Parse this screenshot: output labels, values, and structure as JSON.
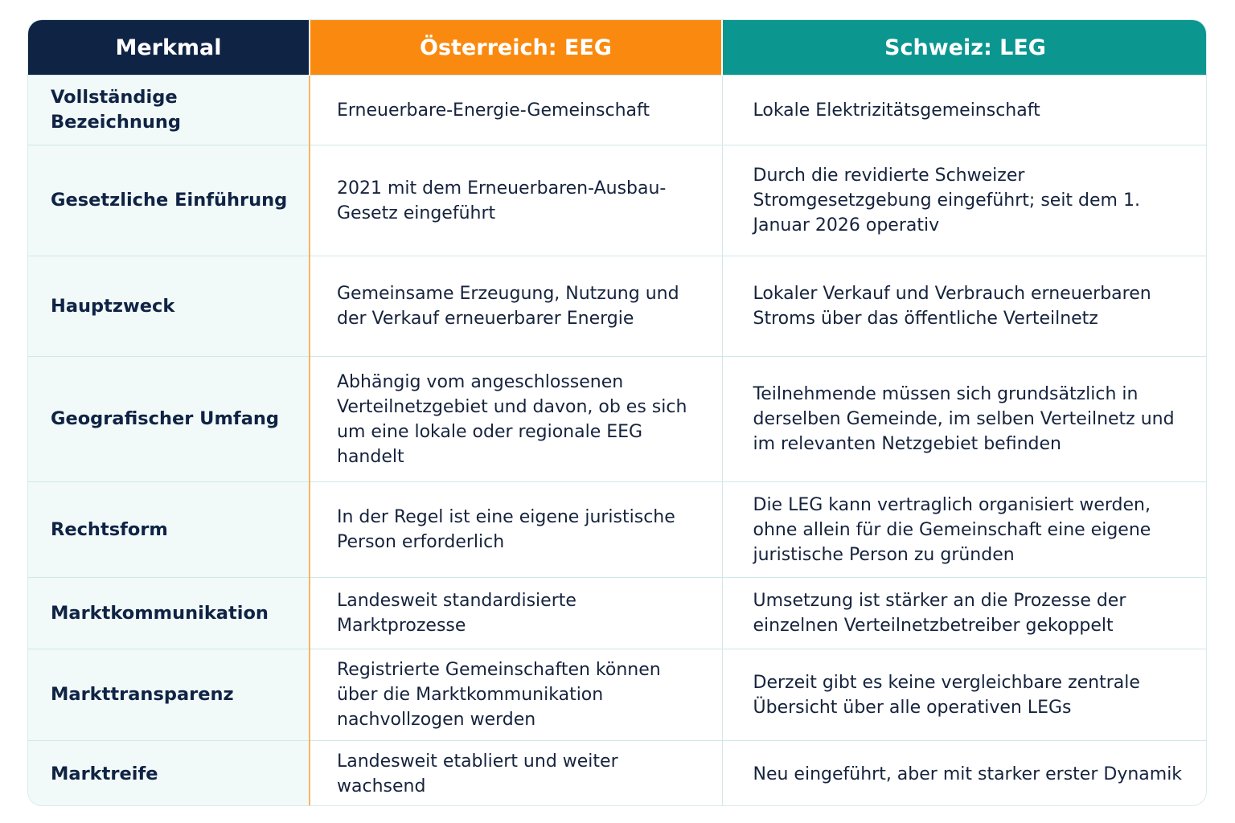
{
  "table": {
    "headers": [
      "Merkmal",
      "Österreich: EEG",
      "Schweiz: LEG"
    ],
    "header_colors": [
      "#0f2344",
      "#f98a0f",
      "#0b9690"
    ],
    "rows": [
      {
        "feature": "Vollständige Bezeichnung",
        "austria": "Erneuerbare-Energie-Gemeinschaft",
        "switzerland": "Lokale Elektrizitätsgemeinschaft"
      },
      {
        "feature": "Gesetzliche Einführung",
        "austria": "2021 mit dem Erneuerbaren-Ausbau-Gesetz eingeführt",
        "switzerland": "Durch die revidierte Schweizer Stromgesetzgebung eingeführt; seit dem 1. Januar 2026 operativ"
      },
      {
        "feature": "Hauptzweck",
        "austria": "Gemeinsame Erzeugung, Nutzung und der Verkauf erneuerbarer Energie",
        "switzerland": "Lokaler Verkauf und Verbrauch erneuerbaren Stroms über das öffentliche Verteilnetz"
      },
      {
        "feature": "Geografischer Umfang",
        "austria": "Abhängig vom angeschlossenen Verteilnetzgebiet und davon, ob es sich um eine lokale oder regionale EEG handelt",
        "switzerland": "Teilnehmende müssen sich grundsätzlich in derselben Gemeinde, im selben Verteilnetz und im relevanten Netzgebiet befinden"
      },
      {
        "feature": "Rechtsform",
        "austria": "In der Regel ist eine eigene juristische Person erforderlich",
        "switzerland": "Die LEG kann vertraglich organisiert werden, ohne allein für die Gemeinschaft eine eigene juristische Person zu gründen"
      },
      {
        "feature": "Marktkommunikation",
        "austria": "Landesweit standardisierte Marktprozesse",
        "switzerland": "Umsetzung ist stärker an die Prozesse der einzelnen Verteilnetzbetreiber gekoppelt"
      },
      {
        "feature": "Markttransparenz",
        "austria": "Registrierte Gemeinschaften können über die Marktkommunikation nachvollzogen werden",
        "switzerland": "Derzeit gibt es keine vergleichbare zentrale Übersicht über alle operativen LEGs"
      },
      {
        "feature": "Marktreife",
        "austria": "Landesweit etabliert und weiter wachsend",
        "switzerland": "Neu eingeführt, aber mit starker erster Dynamik"
      }
    ]
  }
}
